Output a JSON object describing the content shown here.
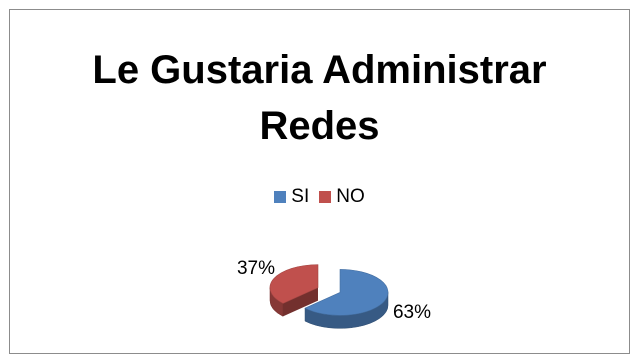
{
  "chart_data": {
    "type": "pie",
    "title_lines": [
      "Le Gustaria Administrar",
      "Redes"
    ],
    "categories": [
      "SI",
      "NO"
    ],
    "values": [
      63,
      37
    ],
    "data_labels": [
      "63%",
      "37%"
    ],
    "colors": [
      "#4f81bd",
      "#c0504d"
    ],
    "legend_position": "top",
    "style": "3d"
  }
}
